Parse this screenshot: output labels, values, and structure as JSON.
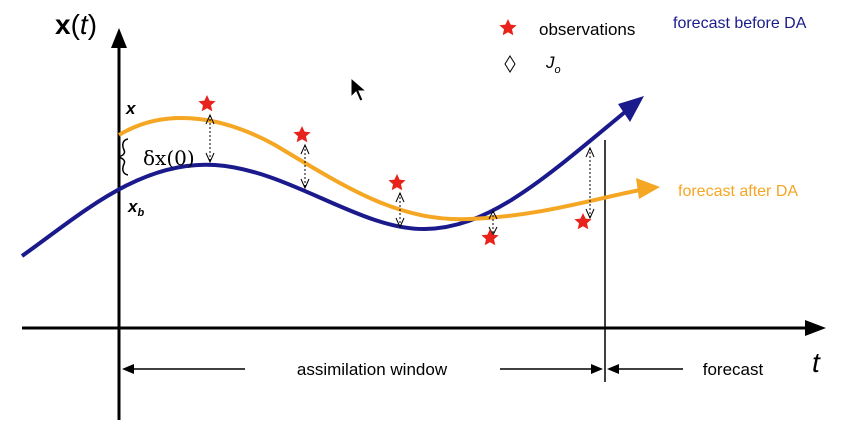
{
  "diagram": {
    "y_axis_label_main": "x",
    "y_axis_label_paren_open": "(",
    "y_axis_label_var": "t",
    "y_axis_label_paren_close": ")",
    "x_axis_label": "t",
    "label_x": "x",
    "label_xb_main": "x",
    "label_xb_sub": "b",
    "label_delta_x0": "δx(0)",
    "legend": {
      "observations_label": "observations",
      "jo_main": "J",
      "jo_sub": "o",
      "forecast_before_label": "forecast before DA"
    },
    "forecast_after_label": "forecast after DA",
    "assimilation_window_label": "assimilation window",
    "forecast_label": "forecast",
    "colors": {
      "forecast_before": "#1a1a8c",
      "forecast_after": "#f5a623",
      "observation_star": "#e8231b",
      "axis": "#000000"
    }
  }
}
